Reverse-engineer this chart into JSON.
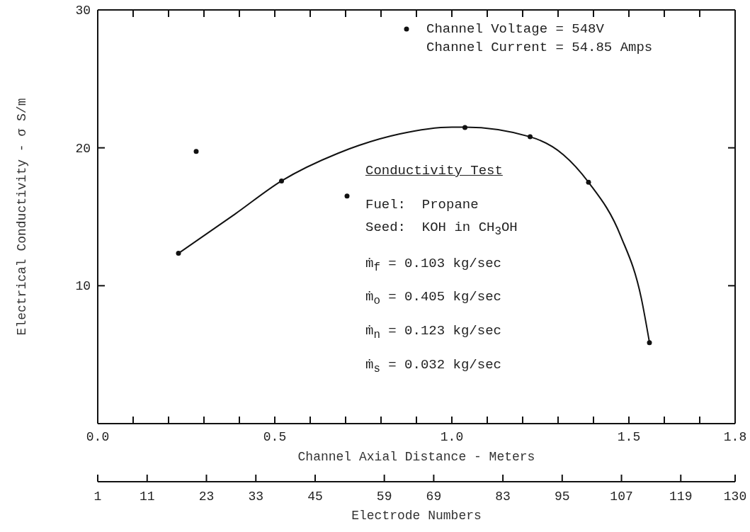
{
  "chart_data": {
    "type": "scatter",
    "xlabel": "Channel Axial Distance - Meters",
    "ylabel": "Electrical Conductivity - σ S/m",
    "x2label": "Electrode Numbers",
    "xlim": [
      0,
      1.8
    ],
    "xticks": [
      {
        "value": 0,
        "label": "0.0"
      },
      {
        "value": 0.1,
        "label": null
      },
      {
        "value": 0.2,
        "label": null
      },
      {
        "value": 0.3,
        "label": null
      },
      {
        "value": 0.4,
        "label": null
      },
      {
        "value": 0.5,
        "label": "0.5"
      },
      {
        "value": 0.6,
        "label": null
      },
      {
        "value": 0.7,
        "label": null
      },
      {
        "value": 0.8,
        "label": null
      },
      {
        "value": 0.9,
        "label": null
      },
      {
        "value": 1,
        "label": "1.0"
      },
      {
        "value": 1.1,
        "label": null
      },
      {
        "value": 1.2,
        "label": null
      },
      {
        "value": 1.3,
        "label": null
      },
      {
        "value": 1.4,
        "label": null
      },
      {
        "value": 1.5,
        "label": "1.5"
      },
      {
        "value": 1.6,
        "label": null
      },
      {
        "value": 1.7,
        "label": null
      },
      {
        "value": 1.8,
        "label": "1.8"
      }
    ],
    "ylim": [
      0,
      30
    ],
    "yticks": [
      10,
      20,
      30
    ],
    "x2lim": [
      1,
      130
    ],
    "x2ticks": [
      1,
      11,
      23,
      33,
      45,
      59,
      69,
      83,
      95,
      107,
      119,
      130
    ],
    "grid": false,
    "legend": "top right",
    "marker": "circle",
    "series": [
      {
        "name": "Channel Voltage = 548V",
        "type": "scatter",
        "color": "#111111",
        "x": [
          0.228,
          0.278,
          0.519,
          0.704,
          1.037,
          1.221,
          1.386,
          1.558
        ],
        "values": [
          12.35,
          19.74,
          17.6,
          16.5,
          21.47,
          20.8,
          17.5,
          5.87
        ]
      },
      {
        "type": "line",
        "marker": "none",
        "color": "#111111",
        "x": [
          0.228,
          0.388,
          0.519,
          0.678,
          0.851,
          1.0,
          1.037,
          1.221,
          1.315,
          1.386,
          1.477,
          1.535,
          1.558
        ],
        "values": [
          12.35,
          15.2,
          17.6,
          19.6,
          21.0,
          21.5,
          21.5,
          20.8,
          19.5,
          17.5,
          13.6,
          9.1,
          5.9
        ]
      }
    ],
    "annotations": [
      "Channel Current = 54.85 Amps",
      "Conductivity Test",
      "Fuel:  Propane",
      "Seed:  KOH in CH$_{3}$OH",
      "ṁ$_{f}$ = 0.103 kg/sec",
      "ṁ$_{o}$ = 0.405 kg/sec",
      "ṁ$_{n}$ = 0.123 kg/sec",
      "ṁ$_{s}$ = 0.032 kg/sec"
    ]
  }
}
